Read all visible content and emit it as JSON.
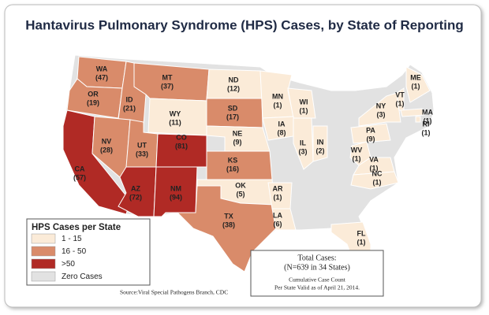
{
  "title": "Hantavirus Pulmonary Syndrome (HPS) Cases, by State of Reporting",
  "legend": {
    "title": "HPS Cases per State",
    "items": [
      {
        "label": "1 - 15",
        "color": "#fbebd8"
      },
      {
        "label": "16 - 50",
        "color": "#d98b6a"
      },
      {
        "label": ">50",
        "color": "#b02a25"
      },
      {
        "label": "Zero Cases",
        "color": "#e2e2e2"
      }
    ]
  },
  "states": [
    {
      "abbr": "WA",
      "cases": 47,
      "cases_label": "(47)",
      "color": "#d98b6a"
    },
    {
      "abbr": "OR",
      "cases": 19,
      "cases_label": "(19)",
      "color": "#d98b6a"
    },
    {
      "abbr": "ID",
      "cases": 21,
      "cases_label": "(21)",
      "color": "#d98b6a"
    },
    {
      "abbr": "MT",
      "cases": 37,
      "cases_label": "(37)",
      "color": "#d98b6a"
    },
    {
      "abbr": "WY",
      "cases": 11,
      "cases_label": "(11)",
      "color": "#fbebd8"
    },
    {
      "abbr": "ND",
      "cases": 12,
      "cases_label": "(12)",
      "color": "#fbebd8"
    },
    {
      "abbr": "SD",
      "cases": 17,
      "cases_label": "(17)",
      "color": "#d98b6a"
    },
    {
      "abbr": "NE",
      "cases": 9,
      "cases_label": "(9)",
      "color": "#fbebd8"
    },
    {
      "abbr": "MN",
      "cases": 1,
      "cases_label": "(1)",
      "color": "#fbebd8"
    },
    {
      "abbr": "WI",
      "cases": 1,
      "cases_label": "(1)",
      "color": "#fbebd8"
    },
    {
      "abbr": "IA",
      "cases": 8,
      "cases_label": "(8)",
      "color": "#fbebd8"
    },
    {
      "abbr": "IL",
      "cases": 3,
      "cases_label": "(3)",
      "color": "#fbebd8"
    },
    {
      "abbr": "IN",
      "cases": 2,
      "cases_label": "(2)",
      "color": "#fbebd8"
    },
    {
      "abbr": "NY",
      "cases": 3,
      "cases_label": "(3)",
      "color": "#fbebd8"
    },
    {
      "abbr": "VT",
      "cases": 1,
      "cases_label": "(1)",
      "color": "#fbebd8"
    },
    {
      "abbr": "ME",
      "cases": 1,
      "cases_label": "(1)",
      "color": "#fbebd8"
    },
    {
      "abbr": "MA",
      "cases": 1,
      "cases_label": "(1)",
      "color": "#fbebd8"
    },
    {
      "abbr": "RI",
      "cases": 1,
      "cases_label": "(1)",
      "color": "#fbebd8"
    },
    {
      "abbr": "PA",
      "cases": 9,
      "cases_label": "(9)",
      "color": "#fbebd8"
    },
    {
      "abbr": "WV",
      "cases": 1,
      "cases_label": "(1)",
      "color": "#fbebd8"
    },
    {
      "abbr": "VA",
      "cases": 1,
      "cases_label": "(1)",
      "color": "#fbebd8"
    },
    {
      "abbr": "NC",
      "cases": 1,
      "cases_label": "(1)",
      "color": "#fbebd8"
    },
    {
      "abbr": "CA",
      "cases": 57,
      "cases_label": "(57)",
      "color": "#b02a25"
    },
    {
      "abbr": "NV",
      "cases": 28,
      "cases_label": "(28)",
      "color": "#d98b6a"
    },
    {
      "abbr": "UT",
      "cases": 33,
      "cases_label": "(33)",
      "color": "#d98b6a"
    },
    {
      "abbr": "CO",
      "cases": 81,
      "cases_label": "(81)",
      "color": "#b02a25"
    },
    {
      "abbr": "AZ",
      "cases": 72,
      "cases_label": "(72)",
      "color": "#b02a25"
    },
    {
      "abbr": "NM",
      "cases": 94,
      "cases_label": "(94)",
      "color": "#b02a25"
    },
    {
      "abbr": "KS",
      "cases": 16,
      "cases_label": "(16)",
      "color": "#d98b6a"
    },
    {
      "abbr": "OK",
      "cases": 5,
      "cases_label": "(5)",
      "color": "#fbebd8"
    },
    {
      "abbr": "TX",
      "cases": 38,
      "cases_label": "(38)",
      "color": "#d98b6a"
    },
    {
      "abbr": "AR",
      "cases": 1,
      "cases_label": "(1)",
      "color": "#fbebd8"
    },
    {
      "abbr": "LA",
      "cases": 6,
      "cases_label": "(6)",
      "color": "#fbebd8"
    },
    {
      "abbr": "FL",
      "cases": 1,
      "cases_label": "(1)",
      "color": "#fbebd8"
    }
  ],
  "summary": {
    "heading": "Total Cases:",
    "total": "(N=639 in 34 States)",
    "notes": [
      "Cumulative Case Count",
      "Per State Valid as of April 21, 2014."
    ]
  },
  "source": "Source:Viral Special Pathogens Branch, CDC"
}
